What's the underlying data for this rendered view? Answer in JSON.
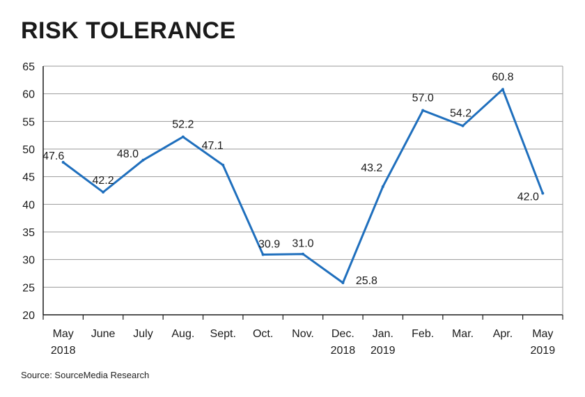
{
  "chart_data": {
    "type": "line",
    "title": "RISK TOLERANCE",
    "xlabel": "",
    "ylabel": "",
    "ylim": [
      20,
      65
    ],
    "y_ticks": [
      20,
      25,
      30,
      35,
      40,
      45,
      50,
      55,
      60,
      65
    ],
    "grid": true,
    "categories": [
      [
        "May",
        "2018"
      ],
      [
        "June"
      ],
      [
        "July"
      ],
      [
        "Aug."
      ],
      [
        "Sept."
      ],
      [
        "Oct."
      ],
      [
        "Nov."
      ],
      [
        "Dec.",
        "2018"
      ],
      [
        "Jan.",
        "2019"
      ],
      [
        "Feb."
      ],
      [
        "Mar."
      ],
      [
        "Apr."
      ],
      [
        "May",
        "2019"
      ]
    ],
    "series": [
      {
        "name": "Risk Tolerance",
        "values": [
          47.6,
          42.2,
          48.0,
          52.2,
          47.1,
          30.9,
          31.0,
          25.8,
          43.2,
          57.0,
          54.2,
          60.8,
          42.0
        ],
        "labels": [
          "47.6",
          "42.2",
          "48.0",
          "52.2",
          "47.1",
          "30.9",
          "31.0",
          "25.8",
          "43.2",
          "57.0",
          "54.2",
          "60.8",
          "42.0"
        ]
      }
    ],
    "source": "Source: SourceMedia Research"
  },
  "colors": {
    "line": "#1f6fbd",
    "grid": "#9a9a9a",
    "axis": "#1a1a1a",
    "text": "#1a1a1a"
  }
}
